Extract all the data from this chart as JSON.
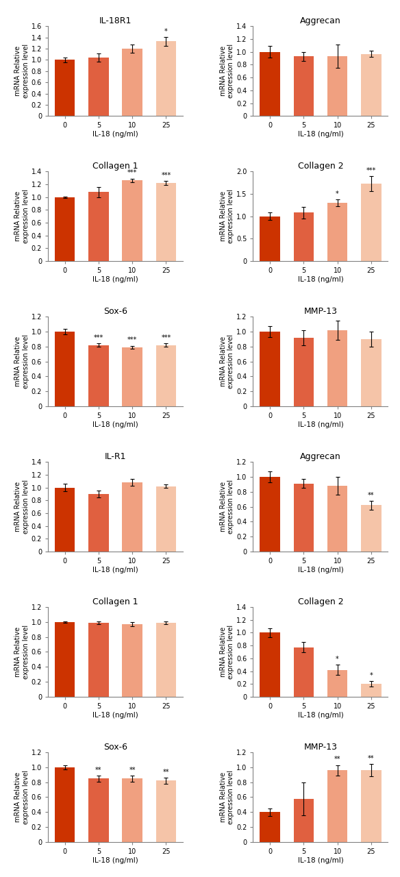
{
  "rows": [
    {
      "left": {
        "title": "IL-18R1",
        "ylim": [
          0,
          1.6
        ],
        "yticks": [
          0,
          0.2,
          0.4,
          0.6,
          0.8,
          1.0,
          1.2,
          1.4,
          1.6
        ],
        "values": [
          1.0,
          1.04,
          1.2,
          1.33
        ],
        "errors": [
          0.04,
          0.07,
          0.07,
          0.08
        ],
        "sig": [
          "",
          "",
          "",
          "*"
        ]
      },
      "right": {
        "title": "Aggrecan",
        "ylim": [
          0,
          1.4
        ],
        "yticks": [
          0,
          0.2,
          0.4,
          0.6,
          0.8,
          1.0,
          1.2,
          1.4
        ],
        "values": [
          1.0,
          0.93,
          0.93,
          0.97
        ],
        "errors": [
          0.09,
          0.07,
          0.18,
          0.05
        ],
        "sig": [
          "",
          "",
          "",
          ""
        ]
      }
    },
    {
      "left": {
        "title": "Collagen 1",
        "ylim": [
          0,
          1.4
        ],
        "yticks": [
          0,
          0.2,
          0.4,
          0.6,
          0.8,
          1.0,
          1.2,
          1.4
        ],
        "values": [
          1.0,
          1.08,
          1.26,
          1.22
        ],
        "errors": [
          0.01,
          0.08,
          0.03,
          0.03
        ],
        "sig": [
          "",
          "",
          "***",
          "***"
        ]
      },
      "right": {
        "title": "Collagen 2",
        "ylim": [
          0,
          2.0
        ],
        "yticks": [
          0,
          0.5,
          1.0,
          1.5,
          2.0
        ],
        "values": [
          1.0,
          1.08,
          1.3,
          1.73
        ],
        "errors": [
          0.08,
          0.13,
          0.08,
          0.17
        ],
        "sig": [
          "",
          "",
          "*",
          "***"
        ]
      }
    },
    {
      "left": {
        "title": "Sox-6",
        "ylim": [
          0,
          1.2
        ],
        "yticks": [
          0,
          0.2,
          0.4,
          0.6,
          0.8,
          1.0,
          1.2
        ],
        "values": [
          1.0,
          0.82,
          0.79,
          0.82
        ],
        "errors": [
          0.04,
          0.02,
          0.02,
          0.02
        ],
        "sig": [
          "",
          "***",
          "***",
          "***"
        ]
      },
      "right": {
        "title": "MMP-13",
        "ylim": [
          0,
          1.2
        ],
        "yticks": [
          0,
          0.2,
          0.4,
          0.6,
          0.8,
          1.0,
          1.2
        ],
        "values": [
          1.0,
          0.92,
          1.02,
          0.9
        ],
        "errors": [
          0.07,
          0.1,
          0.13,
          0.1
        ],
        "sig": [
          "",
          "",
          "",
          ""
        ]
      }
    },
    {
      "left": {
        "title": "IL-R1",
        "ylim": [
          0,
          1.4
        ],
        "yticks": [
          0,
          0.2,
          0.4,
          0.6,
          0.8,
          1.0,
          1.2,
          1.4
        ],
        "values": [
          1.0,
          0.9,
          1.08,
          1.02
        ],
        "errors": [
          0.06,
          0.05,
          0.05,
          0.03
        ],
        "sig": [
          "",
          "",
          "",
          ""
        ]
      },
      "right": {
        "title": "Aggrecan",
        "ylim": [
          0,
          1.2
        ],
        "yticks": [
          0,
          0.2,
          0.4,
          0.6,
          0.8,
          1.0,
          1.2
        ],
        "values": [
          1.0,
          0.91,
          0.88,
          0.62
        ],
        "errors": [
          0.07,
          0.06,
          0.12,
          0.06
        ],
        "sig": [
          "",
          "",
          "",
          "**"
        ]
      }
    },
    {
      "left": {
        "title": "Collagen 1",
        "ylim": [
          0,
          1.2
        ],
        "yticks": [
          0,
          0.2,
          0.4,
          0.6,
          0.8,
          1.0,
          1.2
        ],
        "values": [
          1.0,
          0.99,
          0.97,
          0.99
        ],
        "errors": [
          0.01,
          0.02,
          0.03,
          0.02
        ],
        "sig": [
          "",
          "",
          "",
          ""
        ]
      },
      "right": {
        "title": "Collagen 2",
        "ylim": [
          0,
          1.4
        ],
        "yticks": [
          0,
          0.2,
          0.4,
          0.6,
          0.8,
          1.0,
          1.2,
          1.4
        ],
        "values": [
          1.0,
          0.77,
          0.42,
          0.2
        ],
        "errors": [
          0.07,
          0.08,
          0.08,
          0.04
        ],
        "sig": [
          "",
          "",
          "*",
          "*"
        ]
      }
    },
    {
      "left": {
        "title": "Sox-6",
        "ylim": [
          0,
          1.2
        ],
        "yticks": [
          0,
          0.2,
          0.4,
          0.6,
          0.8,
          1.0,
          1.2
        ],
        "values": [
          1.0,
          0.85,
          0.85,
          0.82
        ],
        "errors": [
          0.03,
          0.04,
          0.04,
          0.04
        ],
        "sig": [
          "",
          "**",
          "**",
          "**"
        ]
      },
      "right": {
        "title": "MMP-13",
        "ylim": [
          0,
          1.2
        ],
        "yticks": [
          0,
          0.2,
          0.4,
          0.6,
          0.8,
          1.0,
          1.2
        ],
        "values": [
          0.4,
          0.58,
          0.96,
          0.96
        ],
        "errors": [
          0.05,
          0.22,
          0.07,
          0.08
        ],
        "sig": [
          "",
          "",
          "**",
          "**"
        ]
      }
    }
  ],
  "bar_colors": [
    "#cc3300",
    "#e06040",
    "#f0a080",
    "#f5c4a8"
  ],
  "xlabel": "IL-18 (ng/ml)",
  "ylabel": "mRNA Relative\nexpression level",
  "xtick_labels": [
    "0",
    "5",
    "10",
    "25"
  ],
  "figsize": [
    5.84,
    12.8
  ],
  "dpi": 100,
  "hspace": 0.62,
  "wspace": 0.52
}
